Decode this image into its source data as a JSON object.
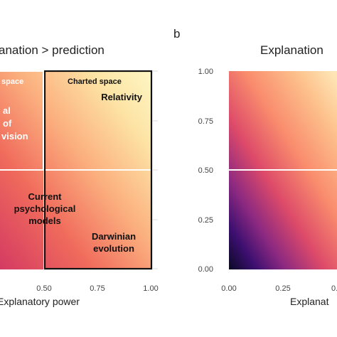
{
  "chart_data": [
    {
      "type": "heatmap",
      "panel_letter": "",
      "title": "anation > prediction",
      "xlabel": "Explanatory power",
      "ylabel": "",
      "xlim": [
        0,
        1
      ],
      "ylim": [
        0,
        1
      ],
      "x_ticks": [
        "0.50",
        "0.75",
        "1.00"
      ],
      "x_tick_values": [
        0.5,
        0.75,
        1.0
      ],
      "grid": true,
      "colors": {
        "low": "#1b0c3a",
        "mid1": "#8c2981",
        "mid2": "#e8566a",
        "mid3": "#fca47a",
        "high": "#fcfdbf",
        "border": "#111111",
        "divider": "#ffffff"
      },
      "regions": [
        {
          "label": "space",
          "x": [
            0,
            0.5
          ],
          "y": [
            0.5,
            1.0
          ]
        },
        {
          "label": "Charted space",
          "x": [
            0.5,
            1.0
          ],
          "y": [
            0.5,
            1.0
          ]
        }
      ],
      "annotations": [
        {
          "text": "Relativity",
          "x": 0.88,
          "y": 0.86
        },
        {
          "text_lines": [
            "al",
            "of",
            "vision"
          ],
          "x": 0.05,
          "y": 0.72
        },
        {
          "text_lines": [
            "Current",
            "psychological",
            "models"
          ],
          "x": 0.3,
          "y": 0.32
        },
        {
          "text_lines": [
            "Darwinian",
            "evolution"
          ],
          "x": 0.8,
          "y": 0.13
        }
      ]
    },
    {
      "type": "heatmap",
      "panel_letter": "b",
      "title": "Explanation",
      "xlabel": "Explanat",
      "ylabel": "",
      "xlim": [
        0,
        1
      ],
      "ylim": [
        0,
        1
      ],
      "x_ticks": [
        "0.00",
        "0.25",
        "0."
      ],
      "x_tick_values": [
        0,
        0.25,
        0.5
      ],
      "y_ticks": [
        "0.00",
        "0.25",
        "0.50",
        "0.75",
        "1.00"
      ],
      "y_tick_values": [
        0,
        0.25,
        0.5,
        0.75,
        1.0
      ],
      "grid": true,
      "colors": {
        "low": "#0b0924",
        "mid1": "#6a1c81",
        "mid2": "#d5456c",
        "mid3": "#fb9f76",
        "high": "#fde4bb",
        "divider": "#ffffff"
      }
    }
  ]
}
